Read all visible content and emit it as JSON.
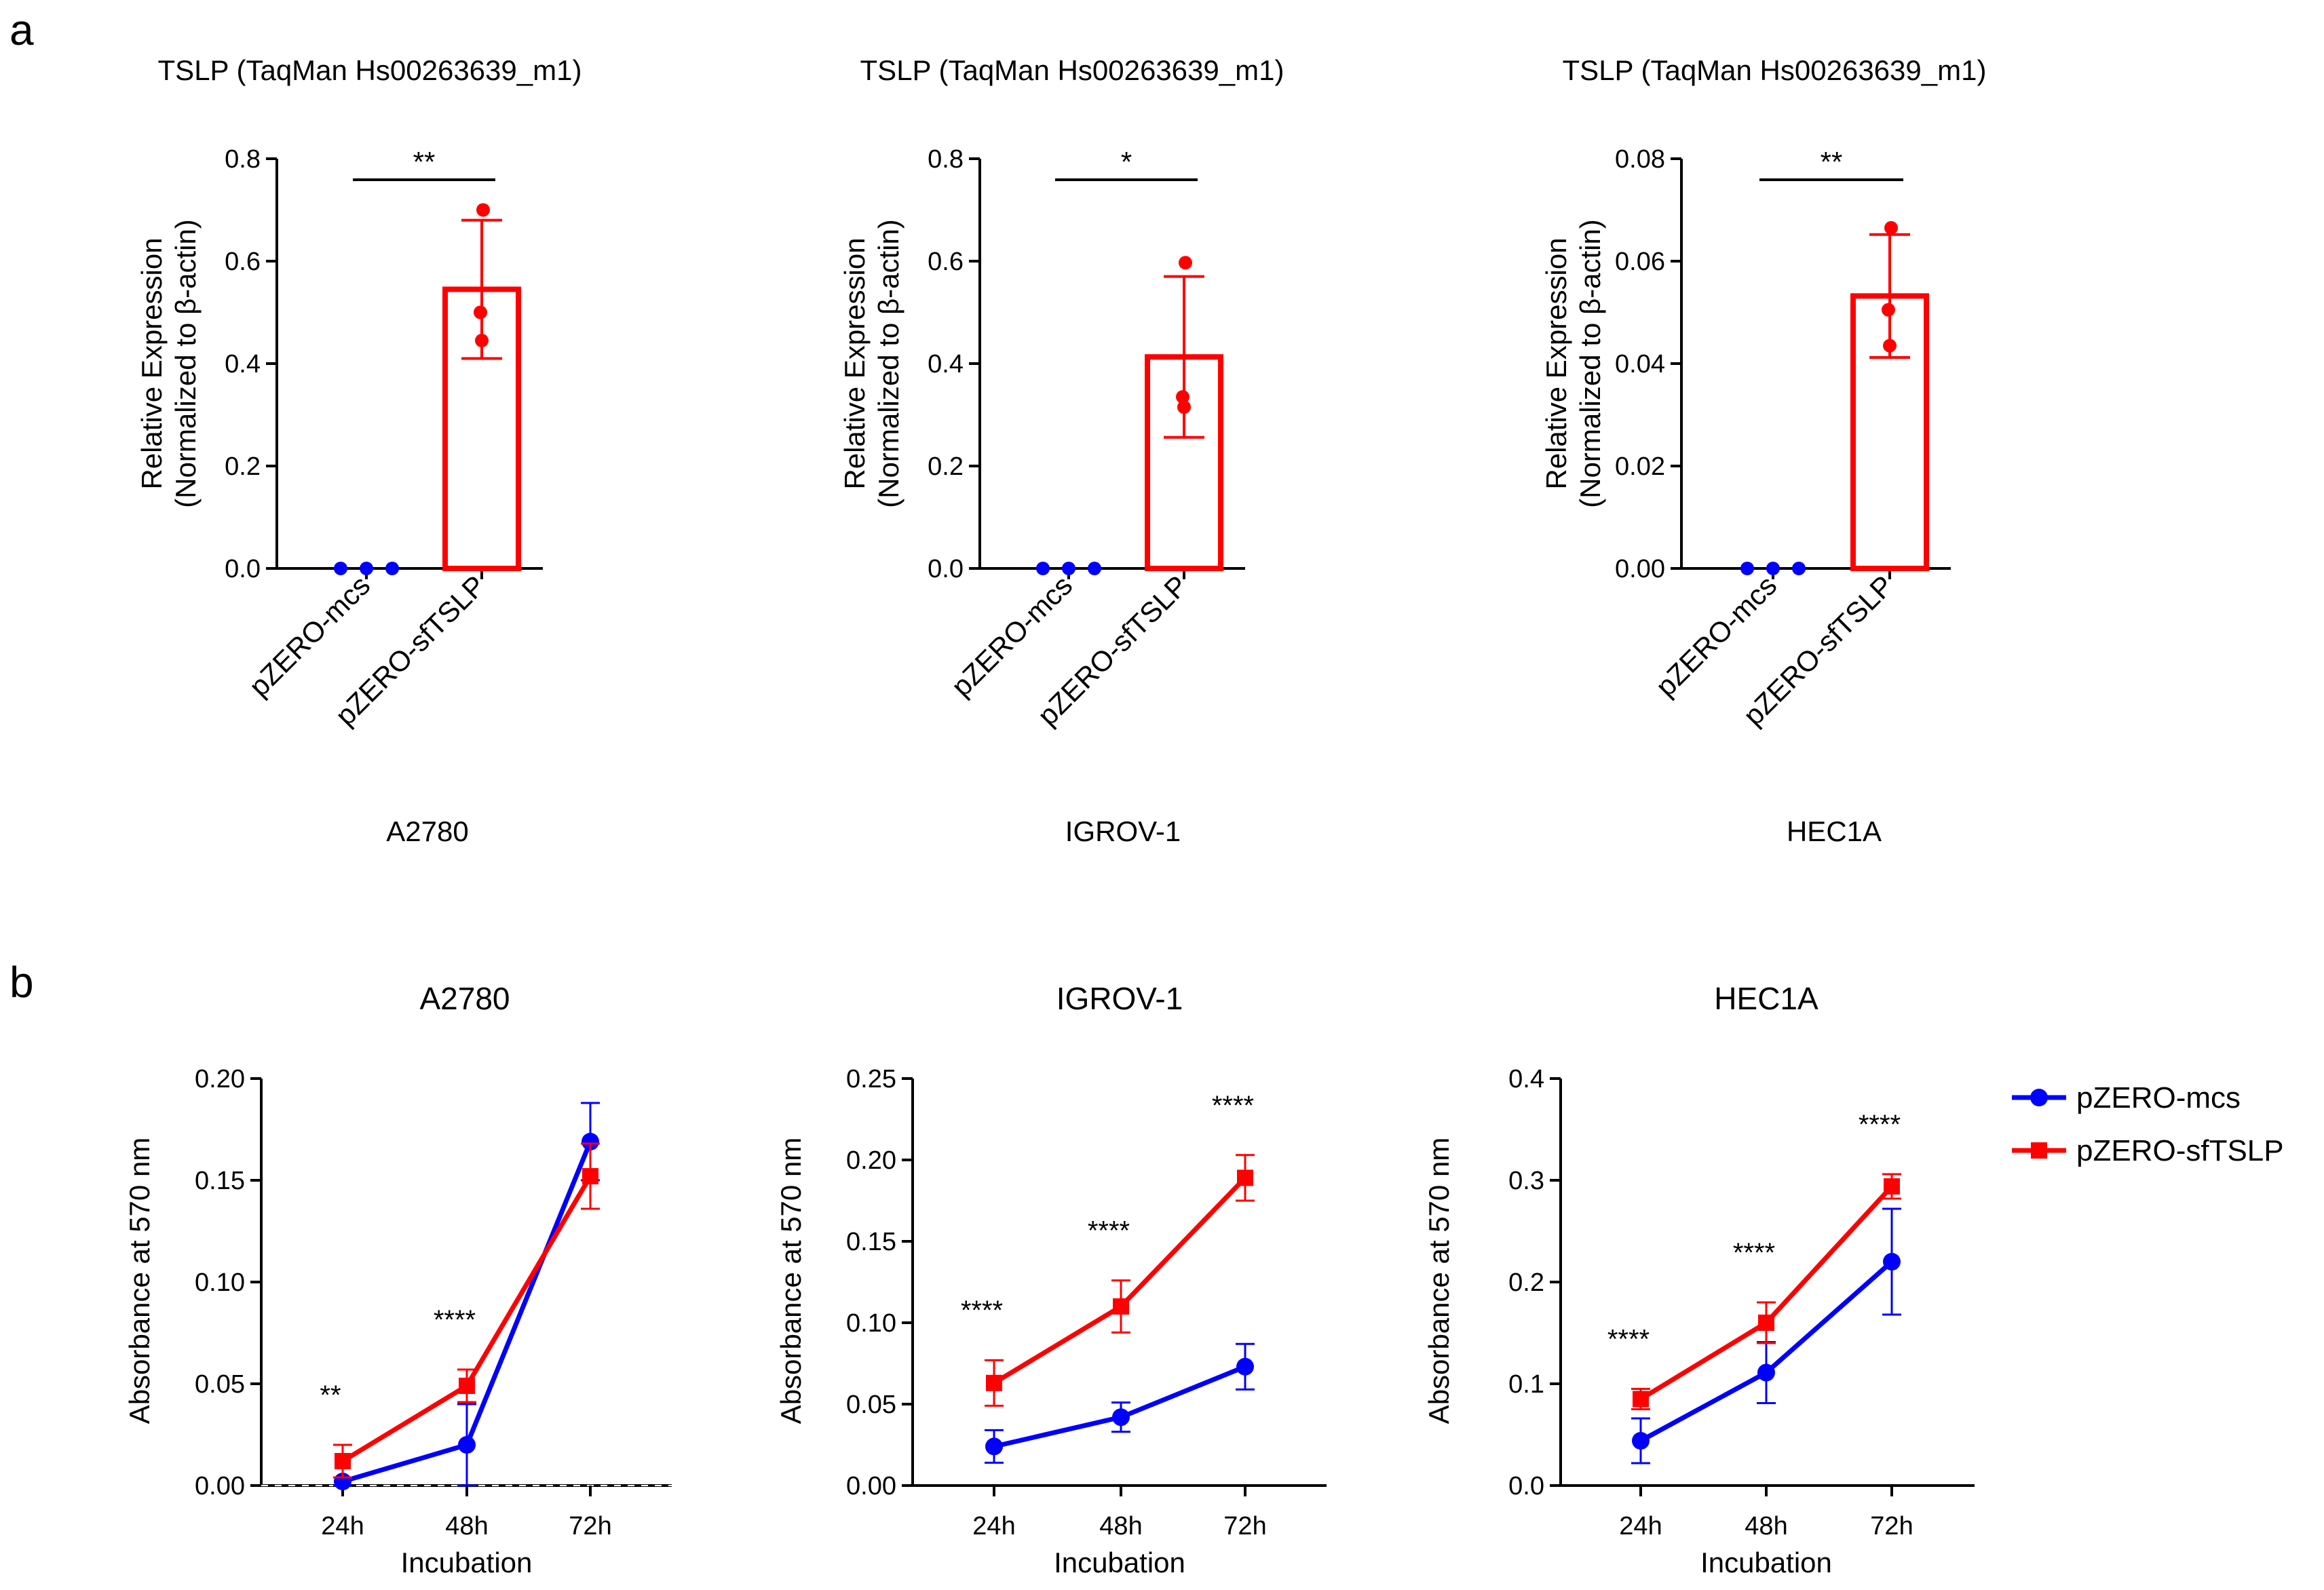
{
  "figure": {
    "panel_a_label": "a",
    "panel_b_label": "b",
    "colors": {
      "mcs": "#0000ff",
      "sftslp": "#ff0000",
      "axis": "#000000"
    }
  },
  "chart_data": [
    {
      "id": "a1",
      "type": "bar",
      "title": "TSLP  (TaqMan Hs00263639_m1)",
      "ylabel_line1": "Relative Expression",
      "ylabel_line2": "(Normalized to β-actin)",
      "xlabel": "A2780",
      "categories": [
        "pZERO-mcs",
        "pZERO-sfTSLP"
      ],
      "ylim": [
        0,
        0.8
      ],
      "yticks": [
        0.0,
        0.2,
        0.4,
        0.6,
        0.8
      ],
      "ytick_labels": [
        "0.0",
        "0.2",
        "0.4",
        "0.6",
        "0.8"
      ],
      "series": [
        {
          "name": "pZERO-mcs",
          "mean": 0.0,
          "sd": 0.0,
          "points": [
            0.0,
            0.0,
            0.0
          ]
        },
        {
          "name": "pZERO-sfTSLP",
          "mean": 0.545,
          "sd": 0.135,
          "points": [
            0.7,
            0.5,
            0.445
          ]
        }
      ],
      "significance": "**"
    },
    {
      "id": "a2",
      "type": "bar",
      "title": "TSLP  (TaqMan Hs00263639_m1)",
      "ylabel_line1": "Relative Expression",
      "ylabel_line2": "(Normalized to β-actin)",
      "xlabel": "IGROV-1",
      "categories": [
        "pZERO-mcs",
        "pZERO-sfTSLP"
      ],
      "ylim": [
        0,
        0.8
      ],
      "yticks": [
        0.0,
        0.2,
        0.4,
        0.6,
        0.8
      ],
      "ytick_labels": [
        "0.0",
        "0.2",
        "0.4",
        "0.6",
        "0.8"
      ],
      "series": [
        {
          "name": "pZERO-mcs",
          "mean": 0.0,
          "sd": 0.0,
          "points": [
            0.0,
            0.0,
            0.0
          ]
        },
        {
          "name": "pZERO-sfTSLP",
          "mean": 0.413,
          "sd": 0.157,
          "points": [
            0.597,
            0.335,
            0.315
          ]
        }
      ],
      "significance": "*"
    },
    {
      "id": "a3",
      "type": "bar",
      "title": "TSLP  (TaqMan Hs00263639_m1)",
      "ylabel_line1": "Relative Expression",
      "ylabel_line2": "(Normalized to β-actin)",
      "xlabel": "HEC1A",
      "categories": [
        "pZERO-mcs",
        "pZERO-sfTSLP"
      ],
      "ylim": [
        0,
        0.08
      ],
      "yticks": [
        0.0,
        0.02,
        0.04,
        0.06,
        0.08
      ],
      "ytick_labels": [
        "0.00",
        "0.02",
        "0.04",
        "0.06",
        "0.08"
      ],
      "series": [
        {
          "name": "pZERO-mcs",
          "mean": 0.0,
          "sd": 0.0,
          "points": [
            0.0,
            0.0,
            0.0
          ]
        },
        {
          "name": "pZERO-sfTSLP",
          "mean": 0.0532,
          "sd": 0.012,
          "points": [
            0.0665,
            0.0505,
            0.0435
          ]
        }
      ],
      "significance": "**"
    },
    {
      "id": "b1",
      "type": "line",
      "title": "A2780",
      "xlabel": "Incubation",
      "ylabel": "Absorbance at 570 nm",
      "categories": [
        "24h",
        "48h",
        "72h"
      ],
      "ylim": [
        0,
        0.2
      ],
      "yticks": [
        0.0,
        0.05,
        0.1,
        0.15,
        0.2
      ],
      "ytick_labels": [
        "0.00",
        "0.05",
        "0.10",
        "0.15",
        "0.20"
      ],
      "zero_dashed": true,
      "series": [
        {
          "name": "pZERO-mcs",
          "values": [
            0.002,
            0.02,
            0.169
          ],
          "errors": [
            0.002,
            0.02,
            0.019
          ]
        },
        {
          "name": "pZERO-sfTSLP",
          "values": [
            0.012,
            0.049,
            0.152
          ],
          "errors": [
            0.008,
            0.008,
            0.016
          ]
        }
      ],
      "significance": [
        "**",
        "****",
        ""
      ]
    },
    {
      "id": "b2",
      "type": "line",
      "title": "IGROV-1",
      "xlabel": "Incubation",
      "ylabel": "Absorbance at 570 nm",
      "categories": [
        "24h",
        "48h",
        "72h"
      ],
      "ylim": [
        0,
        0.25
      ],
      "yticks": [
        0.0,
        0.05,
        0.1,
        0.15,
        0.2,
        0.25
      ],
      "ytick_labels": [
        "0.00",
        "0.05",
        "0.10",
        "0.15",
        "0.20",
        "0.25"
      ],
      "zero_dashed": false,
      "series": [
        {
          "name": "pZERO-mcs",
          "values": [
            0.024,
            0.042,
            0.073
          ],
          "errors": [
            0.01,
            0.009,
            0.014
          ]
        },
        {
          "name": "pZERO-sfTSLP",
          "values": [
            0.063,
            0.11,
            0.189
          ],
          "errors": [
            0.014,
            0.016,
            0.014
          ]
        }
      ],
      "significance": [
        "****",
        "****",
        "****"
      ]
    },
    {
      "id": "b3",
      "type": "line",
      "title": "HEC1A",
      "xlabel": "Incubation",
      "ylabel": "Absorbance at 570 nm",
      "categories": [
        "24h",
        "48h",
        "72h"
      ],
      "ylim": [
        0,
        0.4
      ],
      "yticks": [
        0.0,
        0.1,
        0.2,
        0.3,
        0.4
      ],
      "ytick_labels": [
        "0.0",
        "0.1",
        "0.2",
        "0.3",
        "0.4"
      ],
      "zero_dashed": false,
      "series": [
        {
          "name": "pZERO-mcs",
          "values": [
            0.044,
            0.111,
            0.22
          ],
          "errors": [
            0.022,
            0.03,
            0.052
          ]
        },
        {
          "name": "pZERO-sfTSLP",
          "values": [
            0.085,
            0.16,
            0.294
          ],
          "errors": [
            0.01,
            0.02,
            0.012
          ]
        }
      ],
      "significance": [
        "****",
        "****",
        "****"
      ]
    }
  ],
  "legend": {
    "position": "right",
    "entries": [
      {
        "name": "pZERO-mcs",
        "marker": "circle",
        "color": "#0000ff"
      },
      {
        "name": "pZERO-sfTSLP",
        "marker": "square",
        "color": "#ff0000"
      }
    ]
  }
}
